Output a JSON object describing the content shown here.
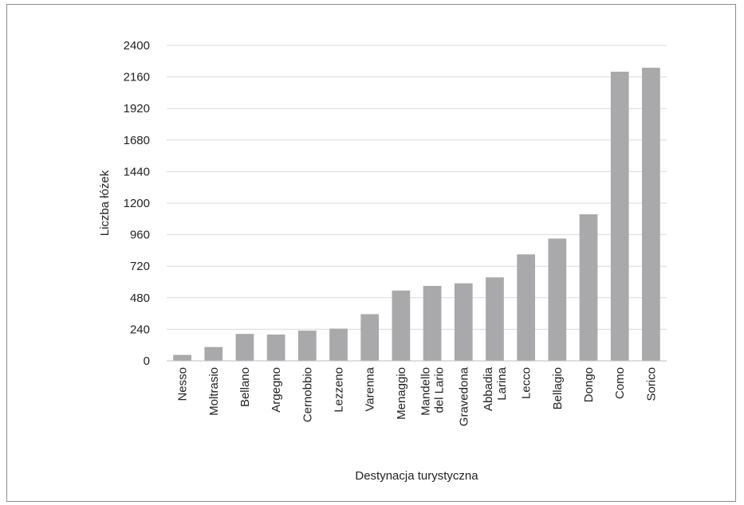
{
  "chart_data": {
    "type": "bar",
    "title": "",
    "xlabel": "Destynacja turystyczna",
    "ylabel": "Liczba łóżek",
    "ylim": [
      0,
      2400
    ],
    "yticks": [
      0,
      240,
      480,
      720,
      960,
      1200,
      1440,
      1680,
      1920,
      2160,
      2400
    ],
    "grid": true,
    "legend": "none",
    "bar_color": "#a9a9ab",
    "grid_color": "#d9d9d9",
    "categories": [
      [
        "Nesso"
      ],
      [
        "Moltrasio"
      ],
      [
        "Bellano"
      ],
      [
        "Argegno"
      ],
      [
        "Cernobbio"
      ],
      [
        "Lezzeno"
      ],
      [
        "Varenna"
      ],
      [
        "Menaggio"
      ],
      [
        "Mandello",
        "del Lario"
      ],
      [
        "Gravedona"
      ],
      [
        "Abbadia",
        "Larina"
      ],
      [
        "Lecco"
      ],
      [
        "Bellagio"
      ],
      [
        "Dongo"
      ],
      [
        "Como"
      ],
      [
        "Sorico"
      ]
    ],
    "values": [
      45,
      105,
      205,
      200,
      230,
      245,
      355,
      535,
      570,
      590,
      635,
      810,
      930,
      1115,
      2200,
      2230
    ]
  }
}
